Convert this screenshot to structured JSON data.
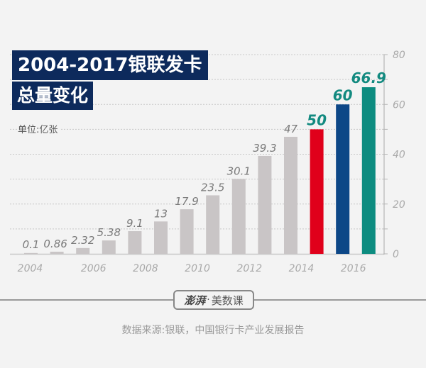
{
  "chart_data": {
    "type": "bar",
    "title": "2004-2017银联发卡",
    "subtitle": "总量变化",
    "unit_label": "单位:亿张",
    "categories": [
      "2004",
      "2005",
      "2006",
      "2007",
      "2008",
      "2009",
      "2010",
      "2011",
      "2012",
      "2013",
      "2014",
      "2015",
      "2016",
      "2017"
    ],
    "values": [
      0.1,
      0.86,
      2.32,
      5.38,
      9.1,
      13,
      17.9,
      23.5,
      30.1,
      39.3,
      47,
      50,
      60,
      66.9
    ],
    "value_labels": [
      "0.1",
      "0.86",
      "2.32",
      "5.38",
      "9.1",
      "13",
      "17.9",
      "23.5",
      "30.1",
      "39.3",
      "47",
      "50",
      "60",
      "66.9"
    ],
    "x_tick_labels": [
      "2004",
      "2006",
      "2008",
      "2010",
      "2012",
      "2014",
      "2016"
    ],
    "y_ticks": [
      0,
      20,
      40,
      60,
      80
    ],
    "y_tick_labels": [
      "0",
      "20",
      "40",
      "60",
      "80"
    ],
    "ylim": [
      0,
      80
    ],
    "grid": true,
    "grid_step": 10,
    "y_axis_position": "right",
    "xlabel": "",
    "ylabel": "",
    "colors": {
      "default_bar": "#c9c5c6",
      "default_label": "#7a7a7a",
      "highlight_label": "#138a80",
      "axis": "#b5b5b5",
      "title_bg": "#0d2a5c"
    },
    "bar_colors": [
      "#c9c5c6",
      "#c9c5c6",
      "#c9c5c6",
      "#c9c5c6",
      "#c9c5c6",
      "#c9c5c6",
      "#c9c5c6",
      "#c9c5c6",
      "#c9c5c6",
      "#c9c5c6",
      "#c9c5c6",
      "#e0001b",
      "#0c4787",
      "#0d8c80"
    ],
    "label_colors": [
      "#7a7a7a",
      "#7a7a7a",
      "#7a7a7a",
      "#7a7a7a",
      "#7a7a7a",
      "#7a7a7a",
      "#7a7a7a",
      "#7a7a7a",
      "#7a7a7a",
      "#7a7a7a",
      "#7a7a7a",
      "#138a80",
      "#138a80",
      "#138a80"
    ]
  },
  "footer": {
    "logo_brand": "澎湃",
    "logo_dot": "·",
    "logo_sub": "美数课",
    "source": "数据来源:银联，中国银行卡产业发展报告"
  }
}
